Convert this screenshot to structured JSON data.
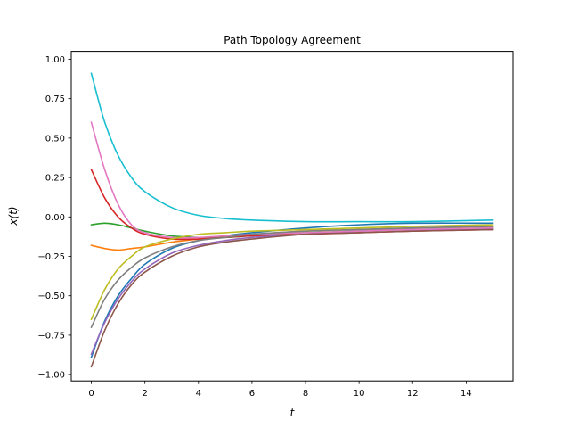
{
  "chart_data": {
    "type": "line",
    "title": "Path Topology Agreement",
    "xlabel": "t",
    "ylabel": "x(t)",
    "xlim": [
      -0.75,
      15.75
    ],
    "ylim": [
      -1.04,
      1.05
    ],
    "xticks": [
      0,
      2,
      4,
      6,
      8,
      10,
      12,
      14
    ],
    "yticks": [
      -1.0,
      -0.75,
      -0.5,
      -0.25,
      0.0,
      0.25,
      0.5,
      0.75,
      1.0
    ],
    "ytick_labels": [
      "−1.00",
      "−0.75",
      "−0.50",
      "−0.25",
      "0.00",
      "0.25",
      "0.50",
      "0.75",
      "1.00"
    ],
    "grid": false,
    "legend": "none",
    "series": [
      {
        "color": "#1f77b4",
        "x": [
          0,
          0.5,
          1,
          1.5,
          2,
          3,
          4,
          5,
          6,
          8,
          10,
          12,
          15
        ],
        "y": [
          -0.89,
          -0.66,
          -0.5,
          -0.39,
          -0.3,
          -0.2,
          -0.15,
          -0.12,
          -0.1,
          -0.07,
          -0.05,
          -0.04,
          -0.04
        ]
      },
      {
        "color": "#ff7f0e",
        "x": [
          0,
          0.5,
          1,
          1.5,
          2,
          3,
          4,
          5,
          6,
          8,
          10,
          12,
          15
        ],
        "y": [
          -0.18,
          -0.2,
          -0.21,
          -0.2,
          -0.19,
          -0.16,
          -0.14,
          -0.12,
          -0.11,
          -0.09,
          -0.08,
          -0.07,
          -0.06
        ]
      },
      {
        "color": "#2ca02c",
        "x": [
          0,
          0.5,
          1,
          1.5,
          2,
          3,
          4,
          5,
          6,
          8,
          10,
          12,
          15
        ],
        "y": [
          -0.05,
          -0.04,
          -0.05,
          -0.07,
          -0.09,
          -0.12,
          -0.13,
          -0.13,
          -0.12,
          -0.1,
          -0.09,
          -0.08,
          -0.07
        ]
      },
      {
        "color": "#d62728",
        "x": [
          0,
          0.5,
          1,
          1.5,
          2,
          3,
          4,
          5,
          6,
          8,
          10,
          12,
          15
        ],
        "y": [
          0.3,
          0.12,
          0.0,
          -0.07,
          -0.11,
          -0.14,
          -0.14,
          -0.13,
          -0.12,
          -0.11,
          -0.1,
          -0.09,
          -0.08
        ]
      },
      {
        "color": "#9467bd",
        "x": [
          0,
          0.5,
          1,
          1.5,
          2,
          3,
          4,
          5,
          6,
          8,
          10,
          12,
          15
        ],
        "y": [
          -0.87,
          -0.67,
          -0.52,
          -0.41,
          -0.33,
          -0.23,
          -0.18,
          -0.15,
          -0.13,
          -0.11,
          -0.09,
          -0.08,
          -0.08
        ]
      },
      {
        "color": "#8c564b",
        "x": [
          0,
          0.5,
          1,
          1.5,
          2,
          3,
          4,
          5,
          6,
          8,
          10,
          12,
          15
        ],
        "y": [
          -0.95,
          -0.72,
          -0.55,
          -0.43,
          -0.35,
          -0.25,
          -0.19,
          -0.16,
          -0.14,
          -0.11,
          -0.1,
          -0.09,
          -0.08
        ]
      },
      {
        "color": "#e377c2",
        "x": [
          0,
          0.5,
          1,
          1.5,
          2,
          3,
          4,
          5,
          6,
          8,
          10,
          12,
          15
        ],
        "y": [
          0.6,
          0.3,
          0.08,
          -0.05,
          -0.1,
          -0.13,
          -0.13,
          -0.12,
          -0.11,
          -0.1,
          -0.09,
          -0.08,
          -0.07
        ]
      },
      {
        "color": "#7f7f7f",
        "x": [
          0,
          0.5,
          1,
          1.5,
          2,
          3,
          4,
          5,
          6,
          8,
          10,
          12,
          15
        ],
        "y": [
          -0.7,
          -0.52,
          -0.4,
          -0.32,
          -0.26,
          -0.19,
          -0.15,
          -0.13,
          -0.11,
          -0.09,
          -0.08,
          -0.07,
          -0.06
        ]
      },
      {
        "color": "#bcbd22",
        "x": [
          0,
          0.5,
          1,
          1.5,
          2,
          3,
          4,
          5,
          6,
          8,
          10,
          12,
          15
        ],
        "y": [
          -0.65,
          -0.46,
          -0.33,
          -0.25,
          -0.19,
          -0.14,
          -0.11,
          -0.1,
          -0.09,
          -0.08,
          -0.07,
          -0.06,
          -0.05
        ]
      },
      {
        "color": "#17becf",
        "x": [
          0,
          0.5,
          1,
          1.5,
          2,
          3,
          4,
          5,
          6,
          8,
          10,
          12,
          15
        ],
        "y": [
          0.91,
          0.6,
          0.39,
          0.25,
          0.16,
          0.06,
          0.01,
          -0.01,
          -0.02,
          -0.03,
          -0.03,
          -0.03,
          -0.02
        ]
      }
    ]
  }
}
